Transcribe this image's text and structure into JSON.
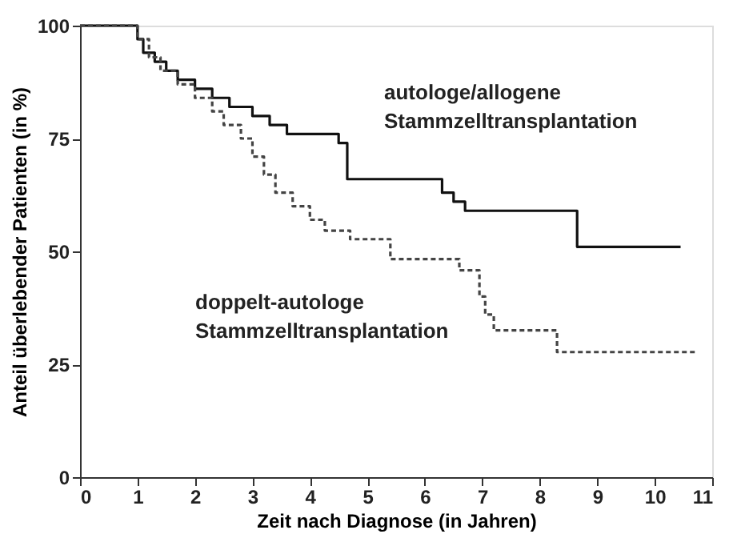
{
  "chart_data": {
    "type": "step",
    "xlabel": "Zeit nach Diagnose (in Jahren)",
    "ylabel": "Anteil überlebender Patienten (in %)",
    "xlim": [
      0,
      11
    ],
    "xticks": [
      0,
      1,
      2,
      3,
      4,
      5,
      6,
      7,
      8,
      9,
      10,
      11
    ],
    "ylim": [
      0,
      100
    ],
    "yticks": [
      0,
      25,
      50,
      75,
      100
    ],
    "grid": false,
    "marker": "none",
    "series": [
      {
        "color": "#111111",
        "line_style": "solid",
        "x": [
          0,
          1.0,
          1.1,
          1.3,
          1.5,
          1.7,
          2.0,
          2.3,
          2.6,
          3.0,
          3.3,
          3.6,
          4.5,
          4.65,
          6.3,
          6.5,
          6.7,
          8.65,
          10.45
        ],
        "values": [
          100,
          97,
          94,
          92,
          90,
          88,
          86,
          84,
          82,
          80,
          78,
          76,
          74,
          66,
          63,
          61,
          59,
          51,
          51
        ]
      },
      {
        "color": "#444444",
        "line_style": "dashed",
        "x": [
          0,
          1.0,
          1.2,
          1.4,
          1.7,
          2.0,
          2.3,
          2.5,
          2.8,
          3.0,
          3.2,
          3.4,
          3.7,
          4.0,
          4.26,
          4.7,
          5.4,
          6.6,
          6.95,
          7.05,
          7.2,
          8.3,
          10.75
        ],
        "values": [
          100,
          97,
          93,
          90,
          87,
          84,
          81,
          78,
          75,
          71,
          67,
          63,
          60,
          57,
          54.6,
          52.7,
          48.3,
          45.8,
          40,
          36,
          32.5,
          27.7,
          27.7
        ]
      }
    ],
    "annotations": [
      "autologe/allogene\nStammzelltransplantation",
      "doppelt-autologe\nStammzelltransplantation"
    ]
  }
}
